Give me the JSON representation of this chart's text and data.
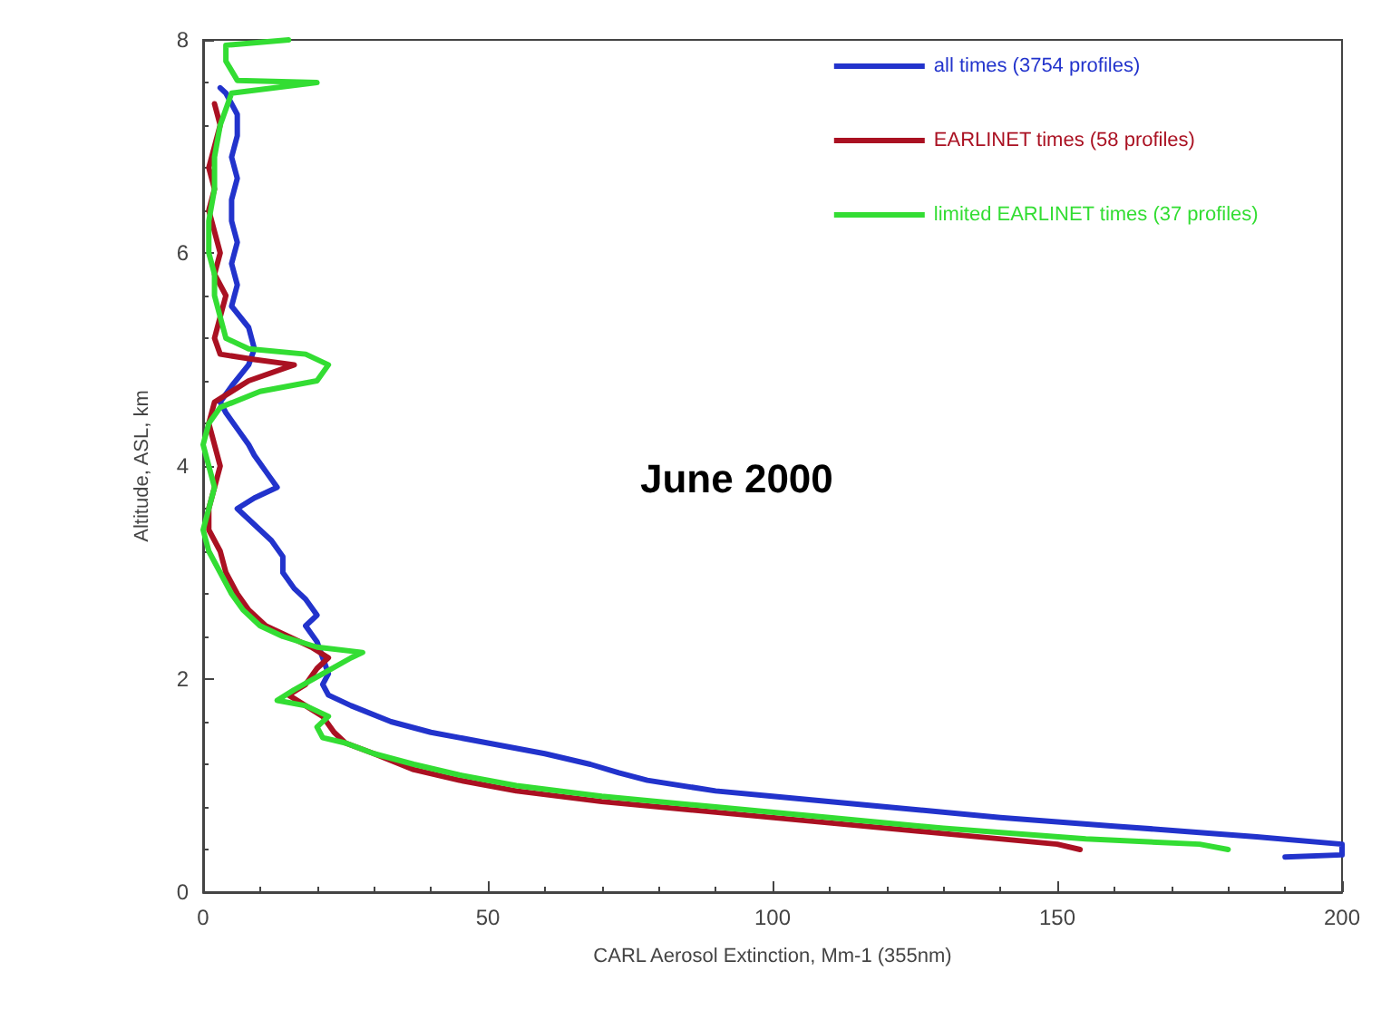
{
  "chart_data": {
    "type": "line",
    "xlabel": "CARL Aerosol Extinction, Mm-1 (355nm)",
    "ylabel": "Altitude, ASL, km",
    "annotations": [
      "June 2000"
    ],
    "xlim": [
      0,
      200
    ],
    "xticks": [
      0,
      50,
      100,
      150,
      200
    ],
    "ylim": [
      0,
      8
    ],
    "yticks": [
      0,
      2,
      4,
      6,
      8
    ],
    "grid": false,
    "legend": "top right",
    "marker": "none",
    "line_style": "solid",
    "series": [
      {
        "name": "all times (3754 profiles)",
        "color": "#2233cc",
        "x": [
          190,
          200,
          200,
          185,
          160,
          140,
          120,
          100,
          90,
          78,
          73,
          68,
          60,
          50,
          40,
          33,
          26,
          22,
          21,
          22,
          21,
          20,
          18,
          20,
          18,
          16,
          14,
          14,
          12,
          10,
          8,
          6,
          9,
          13,
          11,
          9,
          8,
          6,
          4,
          3,
          5,
          8,
          9,
          8,
          5,
          6,
          5,
          6,
          5,
          5,
          6,
          5,
          6,
          6,
          4,
          3
        ],
        "values": [
          0.33,
          0.35,
          0.45,
          0.52,
          0.62,
          0.7,
          0.8,
          0.9,
          0.95,
          1.05,
          1.12,
          1.2,
          1.3,
          1.4,
          1.5,
          1.6,
          1.75,
          1.85,
          1.95,
          2.05,
          2.2,
          2.35,
          2.5,
          2.6,
          2.75,
          2.85,
          3.0,
          3.15,
          3.3,
          3.4,
          3.5,
          3.6,
          3.7,
          3.8,
          3.95,
          4.1,
          4.2,
          4.35,
          4.5,
          4.6,
          4.75,
          4.95,
          5.1,
          5.3,
          5.5,
          5.7,
          5.9,
          6.1,
          6.3,
          6.5,
          6.7,
          6.9,
          7.1,
          7.3,
          7.5,
          7.55
        ]
      },
      {
        "name": "EARLINET times (58 profiles)",
        "color": "#aa1122",
        "x": [
          154,
          150,
          130,
          110,
          90,
          70,
          55,
          45,
          37,
          30,
          25,
          23,
          21,
          18,
          15,
          18,
          20,
          22,
          19,
          15,
          11,
          8,
          6,
          4,
          3,
          1,
          1,
          2,
          3,
          2,
          1,
          2,
          8,
          16,
          9,
          3,
          2,
          3,
          4,
          2,
          3,
          2,
          1,
          2,
          1,
          2,
          3,
          2
        ],
        "values": [
          0.4,
          0.45,
          0.55,
          0.65,
          0.75,
          0.85,
          0.95,
          1.05,
          1.15,
          1.3,
          1.4,
          1.5,
          1.65,
          1.75,
          1.85,
          1.95,
          2.1,
          2.2,
          2.3,
          2.4,
          2.5,
          2.65,
          2.8,
          3.0,
          3.2,
          3.4,
          3.6,
          3.8,
          4.0,
          4.2,
          4.4,
          4.6,
          4.8,
          4.95,
          5.0,
          5.05,
          5.2,
          5.4,
          5.6,
          5.8,
          6.0,
          6.2,
          6.4,
          6.6,
          6.8,
          7.0,
          7.2,
          7.4
        ]
      },
      {
        "name": "limited EARLINET times (37 profiles)",
        "color": "#33dd33",
        "x": [
          180,
          175,
          155,
          130,
          110,
          90,
          70,
          55,
          45,
          37,
          30,
          25,
          21,
          20,
          22,
          18,
          13,
          16,
          21,
          26,
          28,
          20,
          14,
          10,
          7,
          5,
          3,
          1,
          0,
          1,
          2,
          1,
          0,
          1,
          3,
          10,
          20,
          22,
          18,
          8,
          4,
          3,
          2,
          2,
          1,
          1,
          2,
          2,
          3,
          5,
          20,
          6,
          4,
          4,
          15
        ],
        "values": [
          0.4,
          0.45,
          0.5,
          0.6,
          0.7,
          0.8,
          0.9,
          1.0,
          1.1,
          1.2,
          1.3,
          1.4,
          1.45,
          1.55,
          1.65,
          1.75,
          1.8,
          1.9,
          2.05,
          2.2,
          2.25,
          2.3,
          2.4,
          2.5,
          2.65,
          2.8,
          3.0,
          3.2,
          3.4,
          3.6,
          3.8,
          4.0,
          4.2,
          4.4,
          4.55,
          4.7,
          4.8,
          4.95,
          5.05,
          5.1,
          5.2,
          5.4,
          5.6,
          5.8,
          6.0,
          6.3,
          6.6,
          6.9,
          7.2,
          7.5,
          7.6,
          7.62,
          7.8,
          7.95,
          8.0
        ]
      }
    ]
  }
}
